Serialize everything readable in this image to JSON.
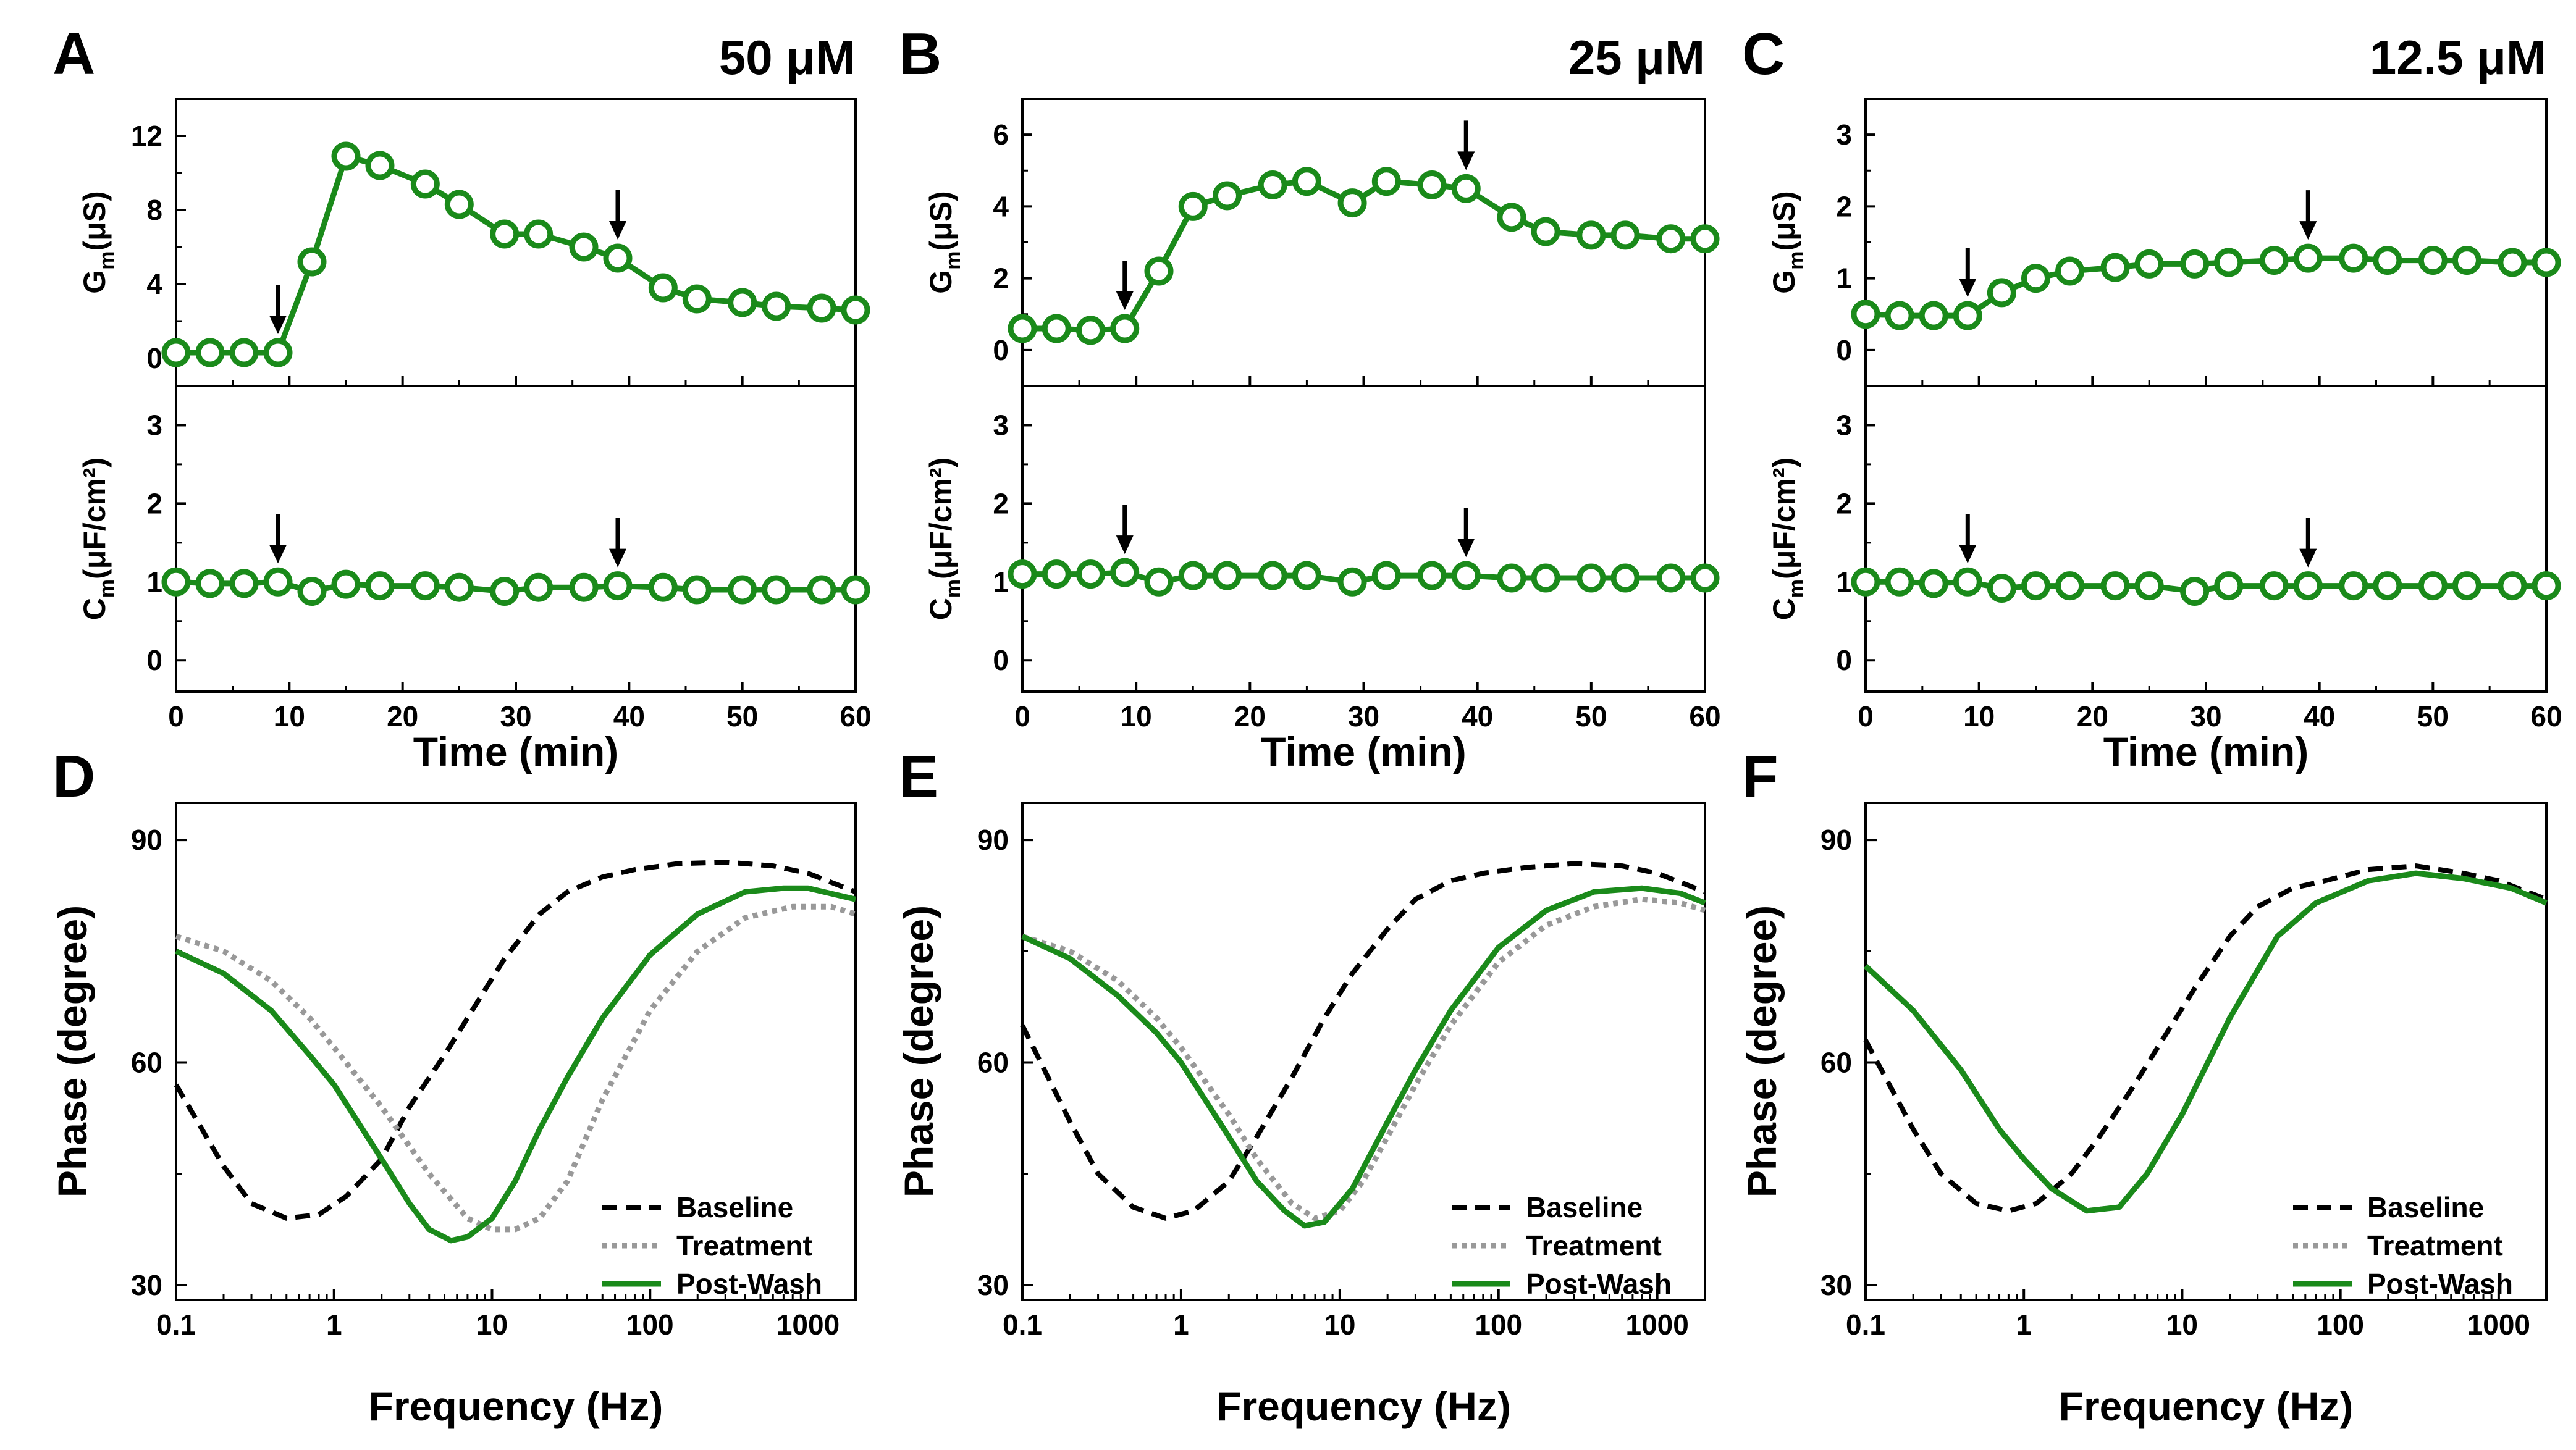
{
  "chart_data": {
    "colors": {
      "green": "#1a8a1a",
      "baseline": "#000000",
      "treatment": "#999999",
      "post_wash": "#1a8a1a"
    },
    "time_panels": [
      {
        "letter": "A",
        "concentration": "50 μM",
        "xlabel": "Time (min)",
        "xlim": [
          0,
          60
        ],
        "xticks": [
          "0",
          "10",
          "20",
          "30",
          "40",
          "50",
          "60"
        ],
        "gm": {
          "ylabel_main": "G",
          "ylabel_sub": "m",
          "ylabel_rest": "(μS)",
          "ylim": [
            -1.5,
            14
          ],
          "yticks": [
            "0",
            "4",
            "8",
            "12"
          ],
          "time": [
            0,
            3,
            6,
            9,
            12,
            15,
            18,
            22,
            25,
            29,
            32,
            36,
            39,
            43,
            46,
            50,
            53,
            57,
            60
          ],
          "values": [
            0.3,
            0.3,
            0.3,
            0.3,
            5.2,
            10.9,
            10.4,
            9.4,
            8.3,
            6.7,
            6.7,
            6.0,
            5.4,
            3.8,
            3.2,
            3.0,
            2.8,
            2.7,
            2.6
          ],
          "arrows": [
            9,
            39
          ]
        },
        "cm": {
          "ylabel_main": "C",
          "ylabel_sub": "m",
          "ylabel_rest": "(μF/cm²)",
          "ylim": [
            -0.4,
            3.5
          ],
          "yticks": [
            "0",
            "1",
            "2",
            "3"
          ],
          "time": [
            0,
            3,
            6,
            9,
            12,
            15,
            18,
            22,
            25,
            29,
            32,
            36,
            39,
            43,
            46,
            50,
            53,
            57,
            60
          ],
          "values": [
            1.0,
            0.98,
            0.98,
            1.0,
            0.88,
            0.97,
            0.95,
            0.95,
            0.93,
            0.88,
            0.93,
            0.93,
            0.95,
            0.93,
            0.9,
            0.9,
            0.9,
            0.9,
            0.9
          ],
          "arrows": [
            9,
            39
          ]
        }
      },
      {
        "letter": "B",
        "concentration": "25 μM",
        "xlabel": "Time (min)",
        "xlim": [
          0,
          60
        ],
        "xticks": [
          "0",
          "10",
          "20",
          "30",
          "40",
          "50",
          "60"
        ],
        "gm": {
          "ylabel_main": "G",
          "ylabel_sub": "m",
          "ylabel_rest": "(μS)",
          "ylim": [
            -1.0,
            7.0
          ],
          "yticks": [
            "0",
            "2",
            "4",
            "6"
          ],
          "time": [
            0,
            3,
            6,
            9,
            12,
            15,
            18,
            22,
            25,
            29,
            32,
            36,
            39,
            43,
            46,
            50,
            53,
            57,
            60
          ],
          "values": [
            0.6,
            0.6,
            0.55,
            0.6,
            2.2,
            4.0,
            4.3,
            4.6,
            4.7,
            4.1,
            4.7,
            4.6,
            4.5,
            3.7,
            3.3,
            3.2,
            3.2,
            3.1,
            3.1
          ],
          "arrows": [
            9,
            39
          ]
        },
        "cm": {
          "ylabel_main": "C",
          "ylabel_sub": "m",
          "ylabel_rest": "(μF/cm²)",
          "ylim": [
            -0.4,
            3.5
          ],
          "yticks": [
            "0",
            "1",
            "2",
            "3"
          ],
          "time": [
            0,
            3,
            6,
            9,
            12,
            15,
            18,
            22,
            25,
            29,
            32,
            36,
            39,
            43,
            46,
            50,
            53,
            57,
            60
          ],
          "values": [
            1.1,
            1.1,
            1.1,
            1.12,
            1.0,
            1.08,
            1.08,
            1.08,
            1.08,
            1.0,
            1.08,
            1.08,
            1.08,
            1.05,
            1.05,
            1.05,
            1.05,
            1.05,
            1.05
          ],
          "arrows": [
            9,
            39
          ]
        }
      },
      {
        "letter": "C",
        "concentration": "12.5 μM",
        "xlabel": "Time (min)",
        "xlim": [
          0,
          60
        ],
        "xticks": [
          "0",
          "10",
          "20",
          "30",
          "40",
          "50",
          "60"
        ],
        "gm": {
          "ylabel_main": "G",
          "ylabel_sub": "m",
          "ylabel_rest": "(μS)",
          "ylim": [
            -0.5,
            3.5
          ],
          "yticks": [
            "0",
            "1",
            "2",
            "3"
          ],
          "time": [
            0,
            3,
            6,
            9,
            12,
            15,
            18,
            22,
            25,
            29,
            32,
            36,
            39,
            43,
            46,
            50,
            53,
            57,
            60
          ],
          "values": [
            0.5,
            0.48,
            0.48,
            0.48,
            0.8,
            1.0,
            1.1,
            1.15,
            1.2,
            1.2,
            1.22,
            1.25,
            1.28,
            1.28,
            1.25,
            1.25,
            1.25,
            1.22,
            1.22
          ],
          "arrows": [
            9,
            39
          ]
        },
        "cm": {
          "ylabel_main": "C",
          "ylabel_sub": "m",
          "ylabel_rest": "(μF/cm²)",
          "ylim": [
            -0.4,
            3.5
          ],
          "yticks": [
            "0",
            "1",
            "2",
            "3"
          ],
          "time": [
            0,
            3,
            6,
            9,
            12,
            15,
            18,
            22,
            25,
            29,
            32,
            36,
            39,
            43,
            46,
            50,
            53,
            57,
            60
          ],
          "values": [
            1.0,
            1.0,
            0.98,
            1.0,
            0.92,
            0.95,
            0.95,
            0.95,
            0.95,
            0.88,
            0.95,
            0.95,
            0.95,
            0.95,
            0.95,
            0.95,
            0.95,
            0.95,
            0.95
          ],
          "arrows": [
            9,
            39
          ]
        }
      }
    ],
    "phase_panels": [
      {
        "letter": "D",
        "xlabel": "Frequency (Hz)",
        "ylabel": "Phase (degree)",
        "xlim": [
          0.1,
          2000
        ],
        "ylim": [
          28,
          95
        ],
        "xticks": [
          {
            "v": 0.1,
            "label": "0.1"
          },
          {
            "v": 1,
            "label": "1"
          },
          {
            "v": 10,
            "label": "10"
          },
          {
            "v": 100,
            "label": "100"
          },
          {
            "v": 1000,
            "label": "1000"
          }
        ],
        "yticks": [
          {
            "v": 30,
            "label": "30"
          },
          {
            "v": 60,
            "label": "60"
          },
          {
            "v": 90,
            "label": "90"
          }
        ],
        "legend": [
          "Baseline",
          "Treatment",
          "Post-Wash"
        ],
        "series": [
          {
            "name": "Baseline",
            "freq": [
              0.1,
              0.2,
              0.3,
              0.5,
              0.8,
              1.2,
              2,
              3,
              5,
              8,
              12,
              20,
              30,
              50,
              80,
              150,
              300,
              600,
              1000,
              2000
            ],
            "phase": [
              57,
              46,
              41,
              39,
              39.5,
              42,
              47,
              54,
              61,
              68,
              74,
              80,
              83,
              85,
              86,
              86.8,
              87,
              86.5,
              85.5,
              83
            ]
          },
          {
            "name": "Treatment",
            "freq": [
              0.1,
              0.2,
              0.4,
              0.7,
              1,
              2,
              4,
              7,
              10,
              14,
              20,
              30,
              50,
              100,
              200,
              400,
              800,
              1400,
              2000
            ],
            "phase": [
              77,
              75,
              71,
              66,
              62,
              54,
              45,
              39,
              37.5,
              37.5,
              39,
              44,
              55,
              67,
              75,
              79.5,
              81,
              81,
              80
            ]
          },
          {
            "name": "Post-Wash",
            "freq": [
              0.1,
              0.2,
              0.4,
              0.7,
              1,
              2,
              3,
              4,
              5.5,
              7,
              10,
              14,
              20,
              30,
              50,
              100,
              200,
              400,
              700,
              1000,
              2000
            ],
            "phase": [
              75,
              72,
              67,
              61,
              57,
              47,
              41,
              37.5,
              36,
              36.5,
              39,
              44,
              51,
              58,
              66,
              74.5,
              80,
              83,
              83.5,
              83.5,
              82
            ]
          }
        ]
      },
      {
        "letter": "E",
        "xlabel": "Frequency (Hz)",
        "ylabel": "Phase (degree)",
        "xlim": [
          0.1,
          2000
        ],
        "ylim": [
          28,
          95
        ],
        "xticks": [
          {
            "v": 0.1,
            "label": "0.1"
          },
          {
            "v": 1,
            "label": "1"
          },
          {
            "v": 10,
            "label": "10"
          },
          {
            "v": 100,
            "label": "100"
          },
          {
            "v": 1000,
            "label": "1000"
          }
        ],
        "yticks": [
          {
            "v": 30,
            "label": "30"
          },
          {
            "v": 60,
            "label": "60"
          },
          {
            "v": 90,
            "label": "90"
          }
        ],
        "legend": [
          "Baseline",
          "Treatment",
          "Post-Wash"
        ],
        "series": [
          {
            "name": "Baseline",
            "freq": [
              0.1,
              0.2,
              0.3,
              0.5,
              0.8,
              1.2,
              2,
              3,
              5,
              8,
              12,
              20,
              30,
              50,
              80,
              150,
              300,
              600,
              1000,
              2000
            ],
            "phase": [
              65,
              52,
              45,
              40.5,
              39,
              40,
              44,
              50,
              58,
              66,
              72,
              78,
              82,
              84.5,
              85.5,
              86.3,
              86.8,
              86.5,
              85.5,
              83
            ]
          },
          {
            "name": "Treatment",
            "freq": [
              0.1,
              0.2,
              0.4,
              0.7,
              1,
              2,
              3,
              5,
              7,
              10,
              14,
              20,
              30,
              50,
              100,
              200,
              400,
              800,
              1400,
              2000
            ],
            "phase": [
              77,
              75,
              71,
              66,
              62,
              53,
              47,
              41,
              39,
              40,
              44,
              50,
              57,
              65,
              73.5,
              78.5,
              81,
              82,
              81.5,
              80.5
            ]
          },
          {
            "name": "Post-Wash",
            "freq": [
              0.1,
              0.2,
              0.4,
              0.7,
              1,
              2,
              3,
              4.5,
              6,
              8,
              12,
              20,
              30,
              50,
              100,
              200,
              400,
              800,
              1400,
              2000
            ],
            "phase": [
              77,
              74,
              69,
              64,
              60,
              50,
              44,
              40,
              38,
              38.5,
              43,
              52,
              59,
              67,
              75.5,
              80.5,
              83,
              83.5,
              82.8,
              81.5
            ]
          }
        ]
      },
      {
        "letter": "F",
        "xlabel": "Frequency (Hz)",
        "ylabel": "Phase (degree)",
        "xlim": [
          0.1,
          2000
        ],
        "ylim": [
          28,
          95
        ],
        "xticks": [
          {
            "v": 0.1,
            "label": "0.1"
          },
          {
            "v": 1,
            "label": "1"
          },
          {
            "v": 10,
            "label": "10"
          },
          {
            "v": 100,
            "label": "100"
          },
          {
            "v": 1000,
            "label": "1000"
          }
        ],
        "yticks": [
          {
            "v": 30,
            "label": "30"
          },
          {
            "v": 60,
            "label": "60"
          },
          {
            "v": 90,
            "label": "90"
          }
        ],
        "legend": [
          "Baseline",
          "Treatment",
          "Post-Wash"
        ],
        "series": [
          {
            "name": "Baseline",
            "freq": [
              0.1,
              0.2,
              0.3,
              0.5,
              0.8,
              1.2,
              2,
              3,
              5,
              8,
              12,
              20,
              30,
              50,
              80,
              150,
              300,
              600,
              1000,
              2000
            ],
            "phase": [
              63,
              51,
              45,
              41,
              40,
              41,
              45,
              50,
              57,
              64,
              70,
              77,
              81,
              83.5,
              84.5,
              86,
              86.5,
              85.5,
              84.5,
              82
            ]
          },
          {
            "name": "Treatment",
            "freq": [
              0.1,
              0.2,
              0.4,
              0.7,
              1,
              1.5,
              2.5,
              4,
              6,
              10,
              20,
              40,
              70,
              150,
              300,
              600,
              1200,
              2000
            ],
            "phase": [
              73,
              67,
              59,
              51,
              47,
              43,
              40,
              40.5,
              45,
              53,
              66,
              77,
              81.5,
              84.5,
              85.5,
              84.8,
              83.5,
              81.5
            ]
          },
          {
            "name": "Post-Wash",
            "freq": [
              0.1,
              0.2,
              0.4,
              0.7,
              1,
              1.5,
              2.5,
              4,
              6,
              10,
              20,
              40,
              70,
              150,
              300,
              600,
              1200,
              2000
            ],
            "phase": [
              73,
              67,
              59,
              51,
              47,
              43,
              40,
              40.5,
              45,
              53,
              66,
              77,
              81.5,
              84.5,
              85.5,
              84.8,
              83.5,
              81.5
            ]
          }
        ]
      }
    ]
  }
}
